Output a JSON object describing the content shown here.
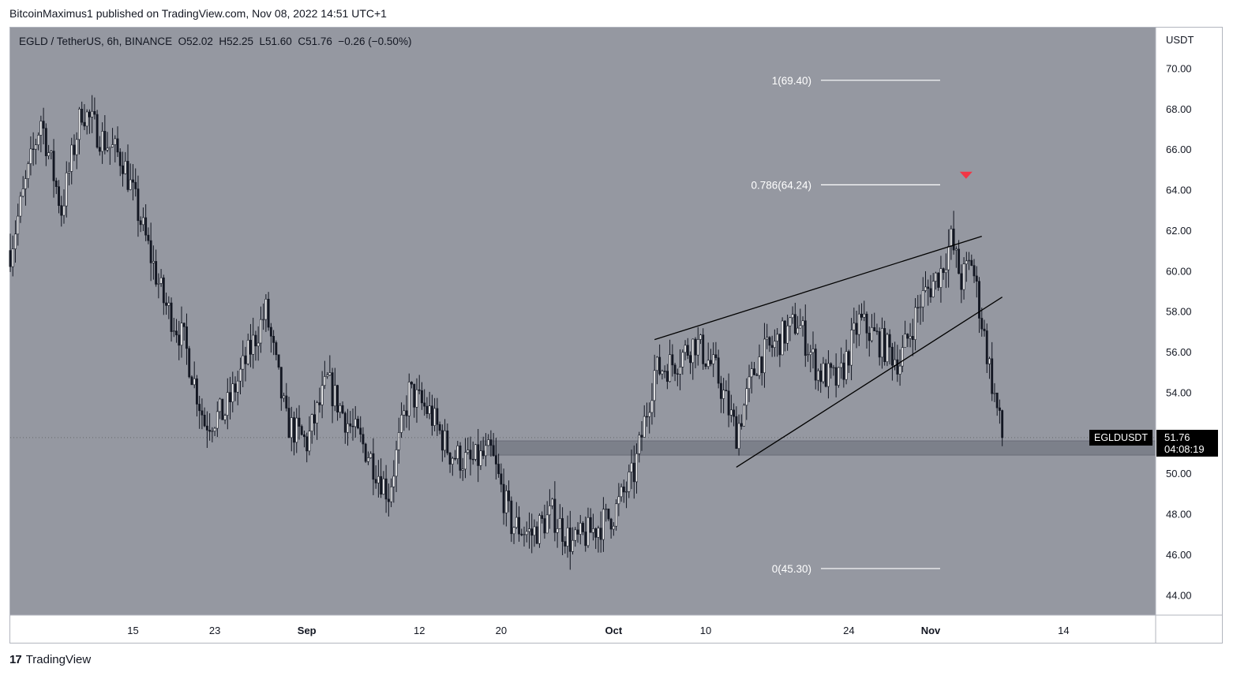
{
  "header": {
    "published_line": "BitcoinMaximus1 published on TradingView.com, Nov 08, 2022 14:51 UTC+1"
  },
  "symbol_bar": {
    "pair": "EGLD / TetherUS, 6h, BINANCE",
    "open_label": "O",
    "open": "52.02",
    "high_label": "H",
    "high": "52.25",
    "low_label": "L",
    "low": "51.60",
    "close_label": "C",
    "close": "51.76",
    "change": "−0.26 (−0.50%)"
  },
  "price_marker": {
    "symbol": "EGLDUSDT",
    "price": "51.76",
    "countdown": "04:08:19"
  },
  "footer": {
    "logo_glyph": "17",
    "brand": "TradingView"
  },
  "colors": {
    "plot_background": "#9598a1",
    "candle_body": "#131722",
    "zone": "#787b86",
    "arrow": "#f23645",
    "fib_line": "#ffffff"
  },
  "chart_data": {
    "type": "candlestick",
    "currency_label": "USDT",
    "ylim": [
      43.0,
      72.0
    ],
    "y_ticks": [
      "70.00",
      "68.00",
      "66.00",
      "64.00",
      "62.00",
      "60.00",
      "58.00",
      "56.00",
      "54.00",
      "52.00",
      "50.00",
      "48.00",
      "46.00",
      "44.00"
    ],
    "x_ticks": [
      {
        "label": "15",
        "date": "2022-08-15"
      },
      {
        "label": "23",
        "date": "2022-08-23"
      },
      {
        "label": "Sep",
        "date": "2022-09-01"
      },
      {
        "label": "12",
        "date": "2022-09-12"
      },
      {
        "label": "20",
        "date": "2022-09-20"
      },
      {
        "label": "Oct",
        "date": "2022-10-01"
      },
      {
        "label": "10",
        "date": "2022-10-10"
      },
      {
        "label": "24",
        "date": "2022-10-24"
      },
      {
        "label": "Nov",
        "date": "2022-11-01"
      },
      {
        "label": "14",
        "date": "2022-11-14"
      }
    ],
    "x_range": [
      "2022-08-03",
      "2022-11-23"
    ],
    "price_path": [
      [
        "2022-08-03",
        61.0
      ],
      [
        "2022-08-06",
        67.5
      ],
      [
        "2022-08-08",
        63.0
      ],
      [
        "2022-08-10",
        68.0
      ],
      [
        "2022-08-12",
        66.5
      ],
      [
        "2022-08-14",
        65.5
      ],
      [
        "2022-08-16",
        62.0
      ],
      [
        "2022-08-18",
        58.5
      ],
      [
        "2022-08-20",
        56.5
      ],
      [
        "2022-08-22",
        52.5
      ],
      [
        "2022-08-24",
        53.0
      ],
      [
        "2022-08-26",
        55.5
      ],
      [
        "2022-08-28",
        58.0
      ],
      [
        "2022-08-30",
        52.5
      ],
      [
        "2022-09-01",
        51.5
      ],
      [
        "2022-09-03",
        54.5
      ],
      [
        "2022-09-05",
        52.5
      ],
      [
        "2022-09-07",
        51.0
      ],
      [
        "2022-09-09",
        49.0
      ],
      [
        "2022-09-11",
        54.0
      ],
      [
        "2022-09-13",
        53.0
      ],
      [
        "2022-09-15",
        51.0
      ],
      [
        "2022-09-17",
        50.5
      ],
      [
        "2022-09-19",
        51.0
      ],
      [
        "2022-09-21",
        47.5
      ],
      [
        "2022-09-23",
        47.0
      ],
      [
        "2022-09-25",
        48.0
      ],
      [
        "2022-09-27",
        46.5
      ],
      [
        "2022-09-29",
        47.2
      ],
      [
        "2022-10-01",
        48.0
      ],
      [
        "2022-10-03",
        50.0
      ],
      [
        "2022-10-05",
        55.0
      ],
      [
        "2022-10-07",
        55.5
      ],
      [
        "2022-10-09",
        56.5
      ],
      [
        "2022-10-11",
        55.0
      ],
      [
        "2022-10-13",
        52.0
      ],
      [
        "2022-10-15",
        55.5
      ],
      [
        "2022-10-17",
        56.5
      ],
      [
        "2022-10-19",
        57.5
      ],
      [
        "2022-10-21",
        55.0
      ],
      [
        "2022-10-23",
        54.5
      ],
      [
        "2022-10-25",
        57.5
      ],
      [
        "2022-10-27",
        56.5
      ],
      [
        "2022-10-29",
        55.5
      ],
      [
        "2022-10-31",
        58.5
      ],
      [
        "2022-11-02",
        60.0
      ],
      [
        "2022-11-03",
        61.5
      ],
      [
        "2022-11-04",
        59.5
      ],
      [
        "2022-11-05",
        60.5
      ],
      [
        "2022-11-06",
        57.5
      ],
      [
        "2022-11-07",
        54.5
      ],
      [
        "2022-11-08",
        51.76
      ]
    ],
    "fib_levels": [
      {
        "label": "1(69.40)",
        "value": 69.4
      },
      {
        "label": "0.786(64.24)",
        "value": 64.24
      },
      {
        "label": "0(45.30)",
        "value": 45.3
      }
    ],
    "support_zone": {
      "from_date": "2022-09-18",
      "low": 50.9,
      "high": 51.6
    },
    "wedge_upper": [
      [
        "2022-10-05",
        56.6
      ],
      [
        "2022-11-06",
        61.7
      ]
    ],
    "wedge_lower": [
      [
        "2022-10-13",
        50.3
      ],
      [
        "2022-11-08",
        58.7
      ]
    ],
    "peak_marker": {
      "date": "2022-11-04",
      "value": 64.3
    },
    "last_price": 51.76
  }
}
